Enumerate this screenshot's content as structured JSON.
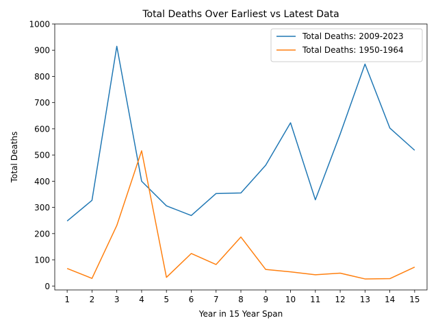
{
  "chart_data": {
    "type": "line",
    "title": "Total Deaths Over Earliest vs Latest Data",
    "xlabel": "Year in 15 Year Span",
    "ylabel": "Total Deaths",
    "x": [
      1,
      2,
      3,
      4,
      5,
      6,
      7,
      8,
      9,
      10,
      11,
      12,
      13,
      14,
      15
    ],
    "xlim": [
      0.5,
      15.5
    ],
    "ylim": [
      -15,
      1000
    ],
    "yticks": [
      0,
      100,
      200,
      300,
      400,
      500,
      600,
      700,
      800,
      900,
      1000
    ],
    "grid": false,
    "legend_position": "top-right",
    "series": [
      {
        "name": "Total Deaths: 2009-2023",
        "color": "#1f77b4",
        "values": [
          248,
          327,
          915,
          400,
          306,
          269,
          353,
          355,
          461,
          623,
          329,
          580,
          847,
          603,
          518
        ]
      },
      {
        "name": "Total Deaths: 1950-1964",
        "color": "#ff7f0e",
        "values": [
          67,
          29,
          231,
          516,
          33,
          124,
          82,
          187,
          63,
          54,
          43,
          49,
          27,
          28,
          72
        ]
      }
    ]
  }
}
